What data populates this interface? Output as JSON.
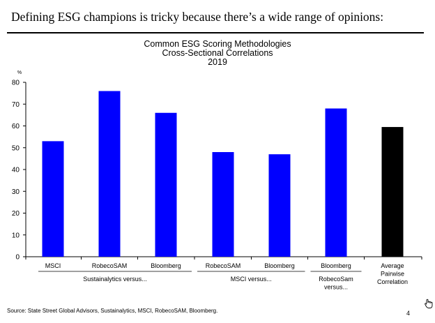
{
  "slide": {
    "title": "Defining ESG champions is tricky because there’s a wide range of opinions:",
    "source": "Source: State Street Global Advisors, Sustainalytics, MSCI, RobecoSAM, Bloomberg.",
    "page_number": "4"
  },
  "colors": {
    "bar": "#0000ff",
    "highlight_bar": "#000000",
    "axis": "#000000"
  },
  "chart_data": {
    "type": "bar",
    "title_lines": [
      "Common ESG Scoring Methodologies",
      "Cross-Sectional Correlations",
      "2019"
    ],
    "ylabel": "%",
    "ylim": [
      0,
      80
    ],
    "yticks": [
      0,
      10,
      20,
      30,
      40,
      50,
      60,
      70,
      80
    ],
    "categories": [
      {
        "label": [
          "MSCI"
        ],
        "value": 53,
        "group": 0
      },
      {
        "label": [
          "RobecoSAM"
        ],
        "value": 76,
        "group": 0
      },
      {
        "label": [
          "Bloomberg"
        ],
        "value": 66,
        "group": 0
      },
      {
        "label": [
          "RobecoSAM"
        ],
        "value": 48,
        "group": 1
      },
      {
        "label": [
          "Bloomberg"
        ],
        "value": 47,
        "group": 1
      },
      {
        "label": [
          "Bloomberg"
        ],
        "value": 68,
        "group": 2
      },
      {
        "label": [
          "Average",
          "Pairwise",
          "Correlation"
        ],
        "value": 59.5,
        "group": 3,
        "highlight": true
      }
    ],
    "groups": [
      {
        "label": [
          "Sustainalytics versus..."
        ]
      },
      {
        "label": [
          "MSCI versus..."
        ]
      },
      {
        "label": [
          "RobecoSam",
          "versus..."
        ]
      },
      {
        "label": []
      }
    ]
  }
}
